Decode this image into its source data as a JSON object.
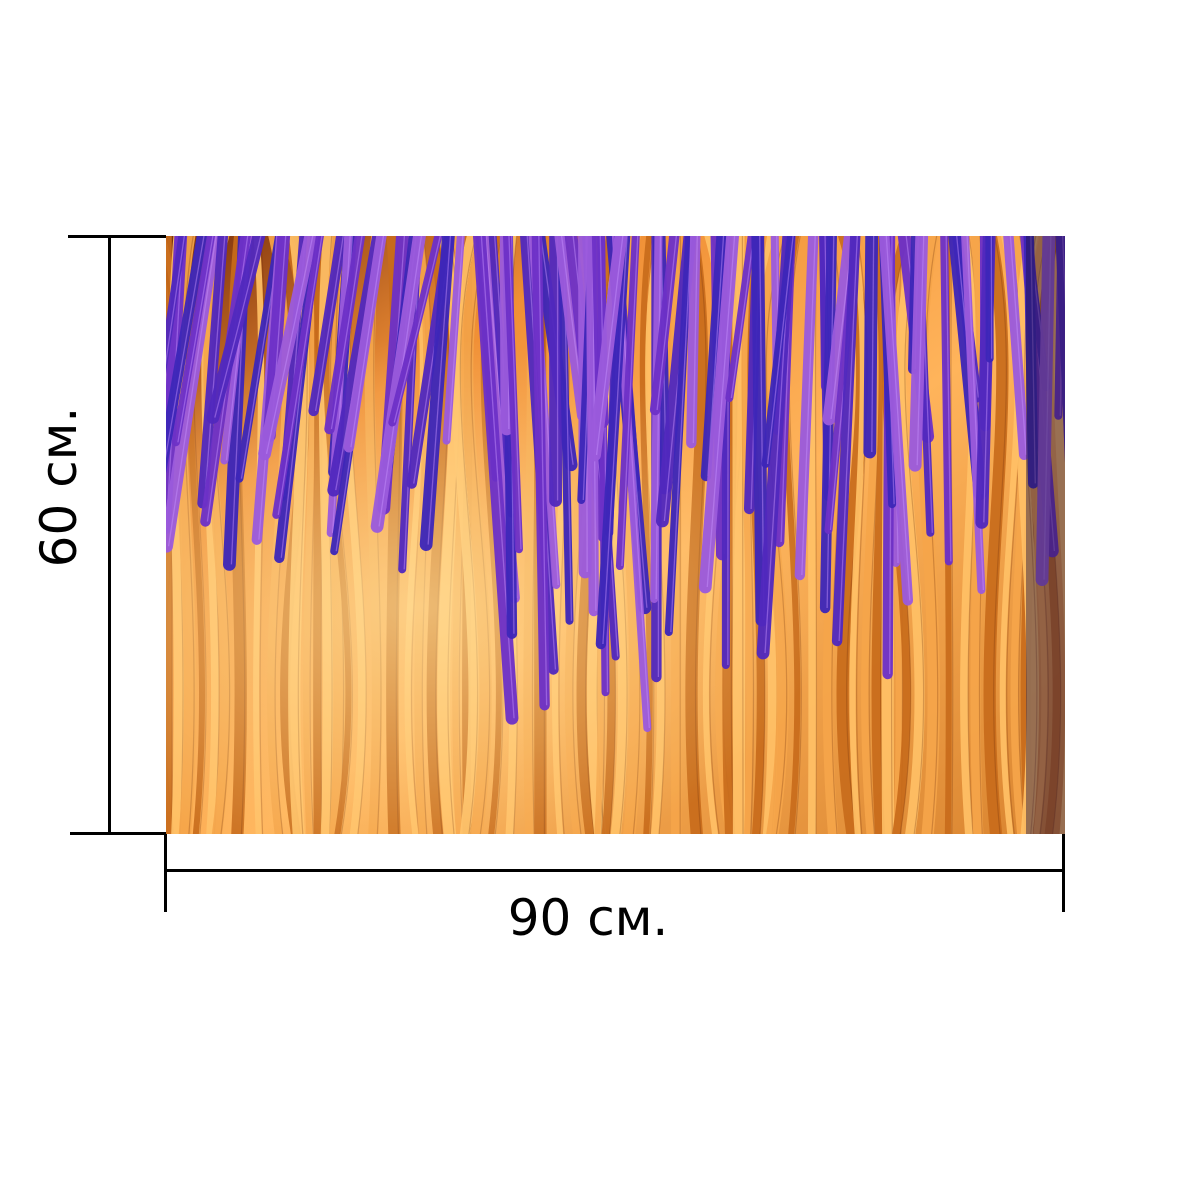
{
  "dimensions": {
    "width_label": "90 см.",
    "height_label": "60 см."
  },
  "image": {
    "subject": "foam-strands",
    "colors": {
      "orange_light": "#ffc066",
      "orange_mid": "#f5a54a",
      "orange_dark": "#c86b1b",
      "purple_light": "#9b5bdc",
      "purple_mid": "#6d31c7",
      "blue_violet": "#3d27b8",
      "shadow": "#6f2e0a"
    }
  }
}
